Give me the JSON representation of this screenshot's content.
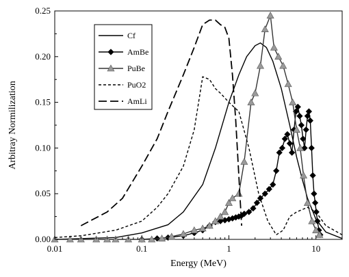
{
  "chart_data": {
    "type": "line",
    "xlabel": "Energy (MeV)",
    "ylabel": "Arbitray Normilization",
    "xscale": "log",
    "xlim": [
      0.01,
      20
    ],
    "ylim": [
      0,
      0.25
    ],
    "xticks": [
      {
        "value": 0.01,
        "label": "0.01"
      },
      {
        "value": 0.1,
        "label": "0.1"
      },
      {
        "value": 1,
        "label": "1"
      },
      {
        "value": 10,
        "label": "10"
      }
    ],
    "yticks": [
      {
        "value": 0.0,
        "label": "0.00"
      },
      {
        "value": 0.05,
        "label": "0.05"
      },
      {
        "value": 0.1,
        "label": "0.10"
      },
      {
        "value": 0.15,
        "label": "0.15"
      },
      {
        "value": 0.2,
        "label": "0.20"
      },
      {
        "value": 0.25,
        "label": "0.25"
      }
    ],
    "grid": false,
    "legend_position": "top-left",
    "series": [
      {
        "name": "Cf",
        "style": "solid",
        "marker": "none",
        "color": "#000000",
        "x": [
          0.01,
          0.05,
          0.1,
          0.2,
          0.3,
          0.5,
          0.7,
          1.0,
          1.3,
          1.6,
          2.0,
          2.3,
          2.7,
          3.2,
          4.0,
          5.0,
          6.0,
          7.0,
          8.0,
          10.0,
          13.0,
          20.0
        ],
        "y": [
          0.0,
          0.002,
          0.007,
          0.016,
          0.03,
          0.06,
          0.1,
          0.15,
          0.18,
          0.2,
          0.212,
          0.215,
          0.21,
          0.195,
          0.165,
          0.125,
          0.09,
          0.065,
          0.045,
          0.022,
          0.008,
          0.001
        ]
      },
      {
        "name": "AmBe",
        "style": "solid",
        "marker": "diamond",
        "color": "#000000",
        "x": [
          0.1,
          0.15,
          0.2,
          0.3,
          0.4,
          0.5,
          0.6,
          0.7,
          0.8,
          0.9,
          1.0,
          1.1,
          1.2,
          1.3,
          1.4,
          1.5,
          1.7,
          1.9,
          2.1,
          2.3,
          2.6,
          2.9,
          3.2,
          3.5,
          3.8,
          4.1,
          4.4,
          4.7,
          5.0,
          5.3,
          5.6,
          5.9,
          6.2,
          6.5,
          6.8,
          7.1,
          7.4,
          7.7,
          8.0,
          8.3,
          8.6,
          8.9,
          9.2,
          9.5,
          9.8,
          10.1,
          10.4,
          10.8,
          11.2
        ],
        "y": [
          0.0,
          0.001,
          0.002,
          0.004,
          0.007,
          0.01,
          0.015,
          0.019,
          0.02,
          0.021,
          0.022,
          0.023,
          0.024,
          0.025,
          0.026,
          0.028,
          0.03,
          0.034,
          0.04,
          0.045,
          0.05,
          0.055,
          0.06,
          0.075,
          0.095,
          0.1,
          0.11,
          0.115,
          0.105,
          0.095,
          0.12,
          0.14,
          0.145,
          0.135,
          0.125,
          0.11,
          0.1,
          0.12,
          0.135,
          0.14,
          0.13,
          0.1,
          0.07,
          0.05,
          0.04,
          0.03,
          0.02,
          0.01,
          0.005
        ]
      },
      {
        "name": "PuBe",
        "style": "solid",
        "marker": "triangle",
        "color": "#666666",
        "x": [
          0.01,
          0.015,
          0.02,
          0.03,
          0.04,
          0.05,
          0.07,
          0.1,
          0.13,
          0.17,
          0.22,
          0.3,
          0.4,
          0.5,
          0.6,
          0.7,
          0.8,
          0.9,
          1.0,
          1.1,
          1.3,
          1.5,
          1.8,
          2.0,
          2.3,
          2.6,
          3.0,
          3.3,
          3.7,
          4.2,
          4.8,
          5.4,
          6.0,
          6.6,
          7.2,
          8.0,
          9.0,
          10.0,
          11.0
        ],
        "y": [
          0.0,
          0.0,
          0.0,
          0.0,
          0.0,
          0.0,
          0.0,
          0.0,
          0.0,
          0.001,
          0.003,
          0.006,
          0.01,
          0.012,
          0.015,
          0.02,
          0.025,
          0.03,
          0.04,
          0.045,
          0.05,
          0.085,
          0.15,
          0.16,
          0.19,
          0.23,
          0.245,
          0.21,
          0.2,
          0.19,
          0.17,
          0.15,
          0.12,
          0.1,
          0.07,
          0.04,
          0.02,
          0.01,
          0.005
        ]
      },
      {
        "name": "PuO2",
        "style": "short-dash",
        "marker": "none",
        "color": "#000000",
        "x": [
          0.01,
          0.02,
          0.05,
          0.1,
          0.15,
          0.2,
          0.3,
          0.4,
          0.5,
          0.6,
          0.7,
          0.8,
          1.0,
          1.3,
          1.7,
          2.2,
          2.8,
          3.5,
          4.2,
          5.0,
          6.0,
          8.0,
          10.0,
          13.0,
          20.0
        ],
        "y": [
          0.002,
          0.004,
          0.01,
          0.02,
          0.035,
          0.05,
          0.08,
          0.12,
          0.178,
          0.175,
          0.165,
          0.16,
          0.15,
          0.14,
          0.1,
          0.05,
          0.02,
          0.005,
          0.01,
          0.025,
          0.03,
          0.035,
          0.03,
          0.015,
          0.005
        ]
      },
      {
        "name": "AmLi",
        "style": "long-dash",
        "marker": "none",
        "color": "#000000",
        "x": [
          0.02,
          0.04,
          0.06,
          0.1,
          0.15,
          0.2,
          0.3,
          0.4,
          0.5,
          0.6,
          0.7,
          0.8,
          0.9,
          1.0,
          1.1,
          1.2,
          1.3,
          1.4
        ],
        "y": [
          0.015,
          0.03,
          0.045,
          0.08,
          0.11,
          0.14,
          0.18,
          0.21,
          0.235,
          0.24,
          0.24,
          0.235,
          0.232,
          0.22,
          0.18,
          0.13,
          0.07,
          0.015
        ]
      }
    ]
  }
}
